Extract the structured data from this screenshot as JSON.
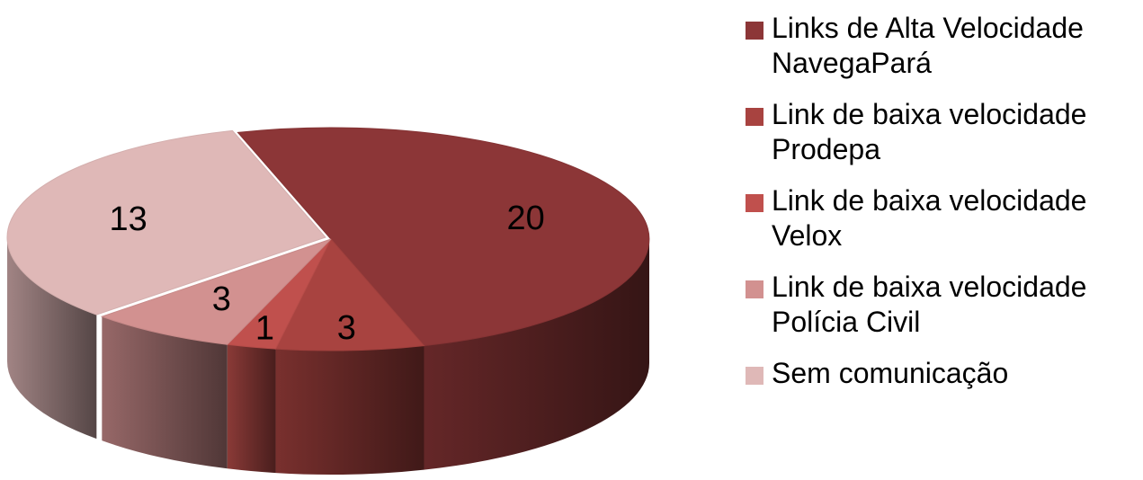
{
  "chart_data": {
    "type": "pie",
    "title": "",
    "legend_position": "right",
    "slices": [
      {
        "name": "Links de Alta Velocidade\nNavegaPará",
        "value": 20,
        "label": "20",
        "color": "#8c3637"
      },
      {
        "name": "Link de baixa velocidade\nProdepa",
        "value": 3,
        "label": "3",
        "color": "#a84340"
      },
      {
        "name": "Link de baixa velocidade\nVelox",
        "value": 1,
        "label": "1",
        "color": "#c0504d"
      },
      {
        "name": "Link de baixa velocidade\nPolícia Civil",
        "value": 3,
        "label": "3",
        "color": "#d29190"
      },
      {
        "name": "Sem comunicação",
        "value": 13,
        "label": "13",
        "color": "#dfb8b7"
      }
    ]
  }
}
